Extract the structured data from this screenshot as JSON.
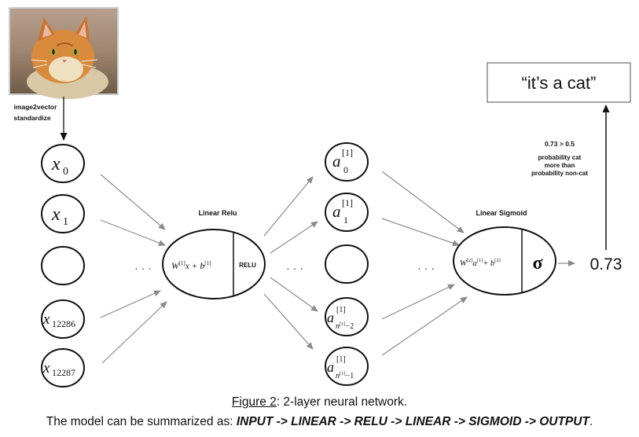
{
  "image_label_line1": "image2vector",
  "image_label_line2": "standardize",
  "hidden_layer_label": "Linear Relu",
  "output_layer_label": "Linear Sigmoid",
  "relu_label": "RELU",
  "sigma_symbol": "σ",
  "output_value": "0.73",
  "result_text": "“it’s a cat”",
  "annotation": {
    "line1": "0.73 > 0.5",
    "line2": "probability cat",
    "line3": "more than",
    "line4": "probability non-cat"
  },
  "ellipsis": "· · ·",
  "inputs": {
    "x0_sub": "0",
    "x1_sub": "1",
    "x12286_sub": "12286",
    "x12287_sub": "12287"
  },
  "hidden": {
    "sup": "[1]",
    "a0_sub": "0",
    "a1_sub": "1",
    "a_n2_sub": "n",
    "a_n2_tail": "−2",
    "a_n1_sub": "n",
    "a_n1_tail": "−1"
  },
  "formula1": {
    "w": "W",
    "sup": "[1]",
    "mid": "x + b",
    "sup2": "[1]"
  },
  "formula2": {
    "w": "W",
    "sup": "[2]",
    "a": "a",
    "sup_a": "[1]",
    "plus_b": "+ b",
    "sup2": "[2]"
  },
  "caption": {
    "figure_ref": "Figure 2",
    "figure_rest": ": 2-layer neural network.",
    "summary_prefix": "The model can be summarized as: ",
    "summary_bold": "INPUT -> LINEAR -> RELU -> LINEAR -> SIGMOID -> OUTPUT",
    "summary_end": "."
  },
  "colors": {
    "arrow_gray": "#8a8a8a",
    "stroke": "#111111"
  }
}
